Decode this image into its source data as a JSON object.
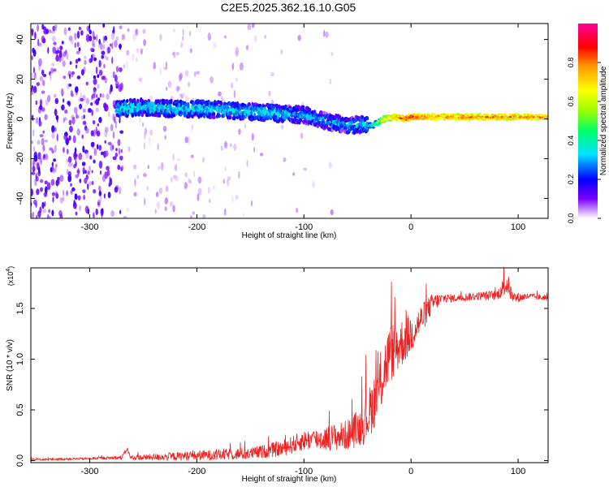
{
  "title": "C2E5.2025.362.16.10.G05",
  "chart_data": [
    {
      "type": "heatmap",
      "name": "spectrogram",
      "title": "C2E5.2025.362.16.10.G05",
      "xlabel": "Height of straight line (km)",
      "ylabel": "Frequency (Hz)",
      "xlim": [
        -355,
        128
      ],
      "ylim": [
        -50,
        48
      ],
      "xticks": [
        "-300",
        "-200",
        "-100",
        "0",
        "100"
      ],
      "xtick_values": [
        -300,
        -200,
        -100,
        0,
        100
      ],
      "yticks": [
        "-40",
        "-20",
        "0",
        "20",
        "40"
      ],
      "ytick_values": [
        -40,
        -20,
        0,
        20,
        40
      ],
      "colorbar": {
        "label": "Normalized spectral amplitude",
        "range": [
          0,
          1
        ],
        "ticks": [
          "0.0",
          "0.2",
          "0.4",
          "0.6",
          "0.8"
        ],
        "tick_values": [
          0.0,
          0.2,
          0.4,
          0.6,
          0.8
        ],
        "colors": [
          "#ffffff",
          "#7b00ff",
          "#0000ff",
          "#00e5ff",
          "#00ff66",
          "#99ff00",
          "#ffff00",
          "#ff9900",
          "#ff0000",
          "#ff0099"
        ]
      },
      "ridge": {
        "x": [
          -275,
          -250,
          -220,
          -190,
          -160,
          -130,
          -100,
          -80,
          -60,
          -45,
          -35,
          -25,
          -15,
          -5,
          0,
          5,
          20,
          60,
          100,
          128
        ],
        "freq": [
          5,
          6,
          5,
          5,
          4,
          3,
          2,
          -1,
          -3,
          -3,
          -3,
          0,
          1,
          0,
          1,
          1,
          1,
          1,
          1,
          1
        ],
        "amplitude": [
          0.35,
          0.35,
          0.35,
          0.35,
          0.35,
          0.35,
          0.3,
          0.3,
          0.3,
          0.35,
          0.4,
          0.7,
          0.8,
          0.85,
          0.9,
          0.85,
          0.8,
          0.8,
          0.8,
          0.8
        ]
      }
    },
    {
      "type": "line",
      "name": "snr",
      "title": "",
      "xlabel": "Height of straight line (km)",
      "ylabel": "SNR (10 * v/v)",
      "multiplier_label": "(x10",
      "multiplier_exp": "4",
      "xlim": [
        -355,
        128
      ],
      "ylim": [
        -0.02,
        1.9
      ],
      "xticks": [
        "-300",
        "-200",
        "-100",
        "0",
        "100"
      ],
      "xtick_values": [
        -300,
        -200,
        -100,
        0,
        100
      ],
      "yticks": [
        "0.0",
        "0.5",
        "1.0",
        "1.5"
      ],
      "ytick_values": [
        0.0,
        0.5,
        1.0,
        1.5
      ],
      "color": "#ee2222",
      "series": [
        {
          "name": "SNR",
          "x": [
            -355,
            -300,
            -270,
            -265,
            -262,
            -250,
            -200,
            -150,
            -120,
            -100,
            -80,
            -60,
            -45,
            -40,
            -30,
            -25,
            -20,
            -10,
            0,
            10,
            20,
            30,
            40,
            60,
            80,
            90,
            95,
            110,
            128
          ],
          "mean": [
            0.01,
            0.02,
            0.03,
            0.12,
            0.03,
            0.03,
            0.05,
            0.07,
            0.12,
            0.2,
            0.22,
            0.25,
            0.35,
            0.45,
            0.7,
            0.9,
            1.05,
            1.15,
            1.25,
            1.4,
            1.55,
            1.6,
            1.6,
            1.62,
            1.63,
            1.75,
            1.6,
            1.62,
            1.6
          ],
          "noise": [
            0.01,
            0.01,
            0.02,
            0.02,
            0.02,
            0.03,
            0.05,
            0.06,
            0.08,
            0.1,
            0.12,
            0.15,
            0.2,
            0.25,
            0.3,
            0.3,
            0.3,
            0.25,
            0.2,
            0.15,
            0.1,
            0.05,
            0.04,
            0.04,
            0.05,
            0.12,
            0.06,
            0.03,
            0.03
          ]
        }
      ]
    }
  ]
}
